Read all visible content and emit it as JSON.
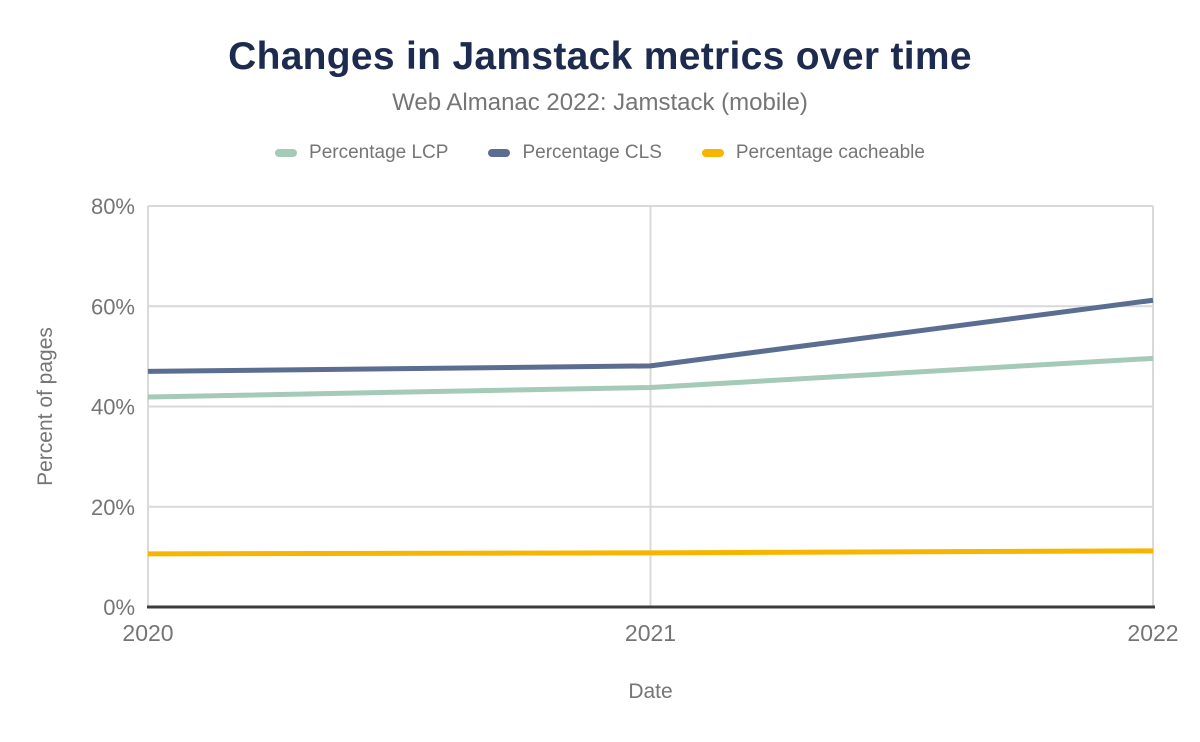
{
  "header": {
    "title": "Changes in Jamstack metrics over time",
    "subtitle": "Web Almanac 2022: Jamstack (mobile)"
  },
  "legend": {
    "items": [
      {
        "label": "Percentage LCP",
        "color": "#a5cab7"
      },
      {
        "label": "Percentage CLS",
        "color": "#5b6d90"
      },
      {
        "label": "Percentage cacheable",
        "color": "#f7b500"
      }
    ]
  },
  "chart_data": {
    "type": "line",
    "x": [
      "2020",
      "2021",
      "2022"
    ],
    "series": [
      {
        "name": "Percentage LCP",
        "color": "#a5cab7",
        "values": [
          41.9,
          43.8,
          49.6
        ]
      },
      {
        "name": "Percentage CLS",
        "color": "#5b6d90",
        "values": [
          47.0,
          48.1,
          61.2
        ]
      },
      {
        "name": "Percentage cacheable",
        "color": "#f7b500",
        "values": [
          10.6,
          10.8,
          11.2
        ]
      }
    ],
    "title": "Changes in Jamstack metrics over time",
    "subtitle": "Web Almanac 2022: Jamstack (mobile)",
    "xlabel": "Date",
    "ylabel": "Percent of pages",
    "ylim": [
      0,
      80
    ],
    "yticks": [
      0,
      20,
      40,
      60,
      80
    ],
    "ytick_format": "percent",
    "grid": true,
    "legend_position": "top"
  },
  "colors": {
    "title": "#1c2b4e",
    "text_muted": "#757575",
    "gridline": "#d9d9d9",
    "axis_line": "#3c3c3c",
    "background": "#ffffff"
  }
}
